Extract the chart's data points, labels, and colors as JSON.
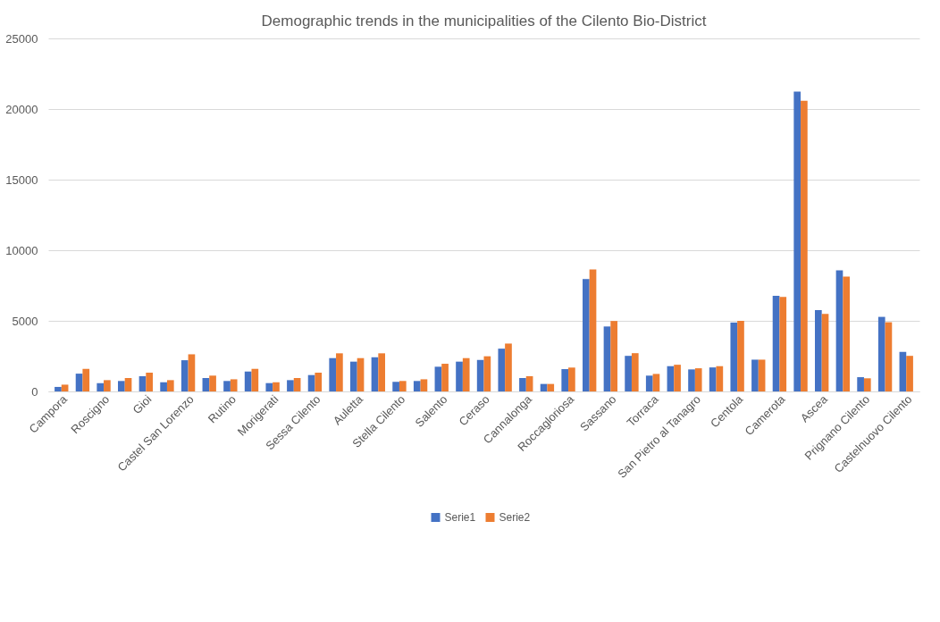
{
  "chart_data": {
    "type": "bar",
    "title": "Demographic trends in the municipalities of the Cilento Bio-District",
    "categories": [
      "Campora",
      null,
      "Roscigno",
      null,
      "Gioi",
      null,
      "Castel San Lorenzo",
      null,
      "Rutino",
      null,
      "Morigerati",
      null,
      "Sessa Cilento",
      null,
      "Auletta",
      null,
      "Stella Cilento",
      null,
      "Salento",
      null,
      "Ceraso",
      null,
      "Cannalonga",
      null,
      "Roccagloriosa",
      null,
      "Sassano",
      null,
      "Torraca",
      null,
      "San Pietro al Tanagro",
      null,
      "Centola",
      null,
      "Camerota",
      null,
      "Ascea",
      null,
      "Prignano Cilento",
      null,
      "Castelnuovo Cilento"
    ],
    "series": [
      {
        "name": "Serie1",
        "color": "#4472c4",
        "values": [
          320,
          1260,
          590,
          740,
          1080,
          650,
          2210,
          950,
          740,
          1410,
          590,
          800,
          1160,
          2360,
          2110,
          2420,
          680,
          740,
          1750,
          2110,
          2230,
          3030,
          950,
          530,
          1580,
          7960,
          4600,
          2520,
          1120,
          1790,
          1560,
          1700,
          4880,
          2250,
          6770,
          21240,
          5760,
          8580,
          1010,
          5280,
          2800
        ]
      },
      {
        "name": "Serie2",
        "color": "#ed7d31",
        "values": [
          480,
          1600,
          800,
          950,
          1330,
          800,
          2630,
          1120,
          860,
          1600,
          650,
          950,
          1330,
          2700,
          2360,
          2700,
          740,
          860,
          1960,
          2360,
          2490,
          3390,
          1080,
          530,
          1690,
          8640,
          4990,
          2710,
          1240,
          1890,
          1640,
          1790,
          5000,
          2250,
          6690,
          20590,
          5490,
          8140,
          930,
          4900,
          2520
        ]
      }
    ],
    "ylim": [
      0,
      25000
    ],
    "yticks": [
      0,
      5000,
      10000,
      15000,
      20000,
      25000
    ],
    "grid": "y",
    "legend": "bottom"
  }
}
